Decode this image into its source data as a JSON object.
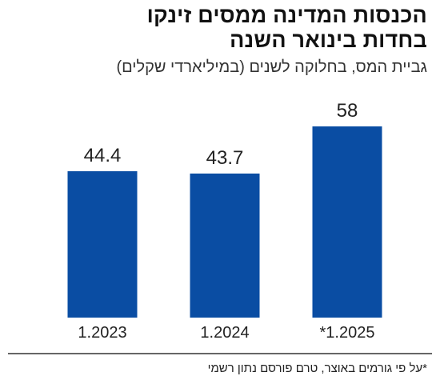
{
  "header": {
    "title_line1": "הכנסות המדינה ממסים זינקו",
    "title_line2": "בחדות בינואר השנה",
    "subtitle": "גביית המס, בחלוקה לשנים (במיליארדי שקלים)"
  },
  "colors": {
    "bar": "#0a4da3",
    "axis": "#333333",
    "text": "#222222"
  },
  "chart_data": {
    "type": "bar",
    "categories": [
      "1.2023",
      "1.2024",
      "*1.2025"
    ],
    "values": [
      44.4,
      43.7,
      58
    ],
    "value_labels": [
      "44.4",
      "43.7",
      "58"
    ],
    "title": "הכנסות המדינה ממסים זינקו בחדות בינואר השנה",
    "subtitle": "גביית המס, בחלוקה לשנים (במיליארדי שקלים)",
    "ylim": [
      0,
      58
    ],
    "grid": false,
    "legend": "none"
  },
  "footnote": "*על פי גורמים באוצר, טרם פורסם נתון רשמי"
}
